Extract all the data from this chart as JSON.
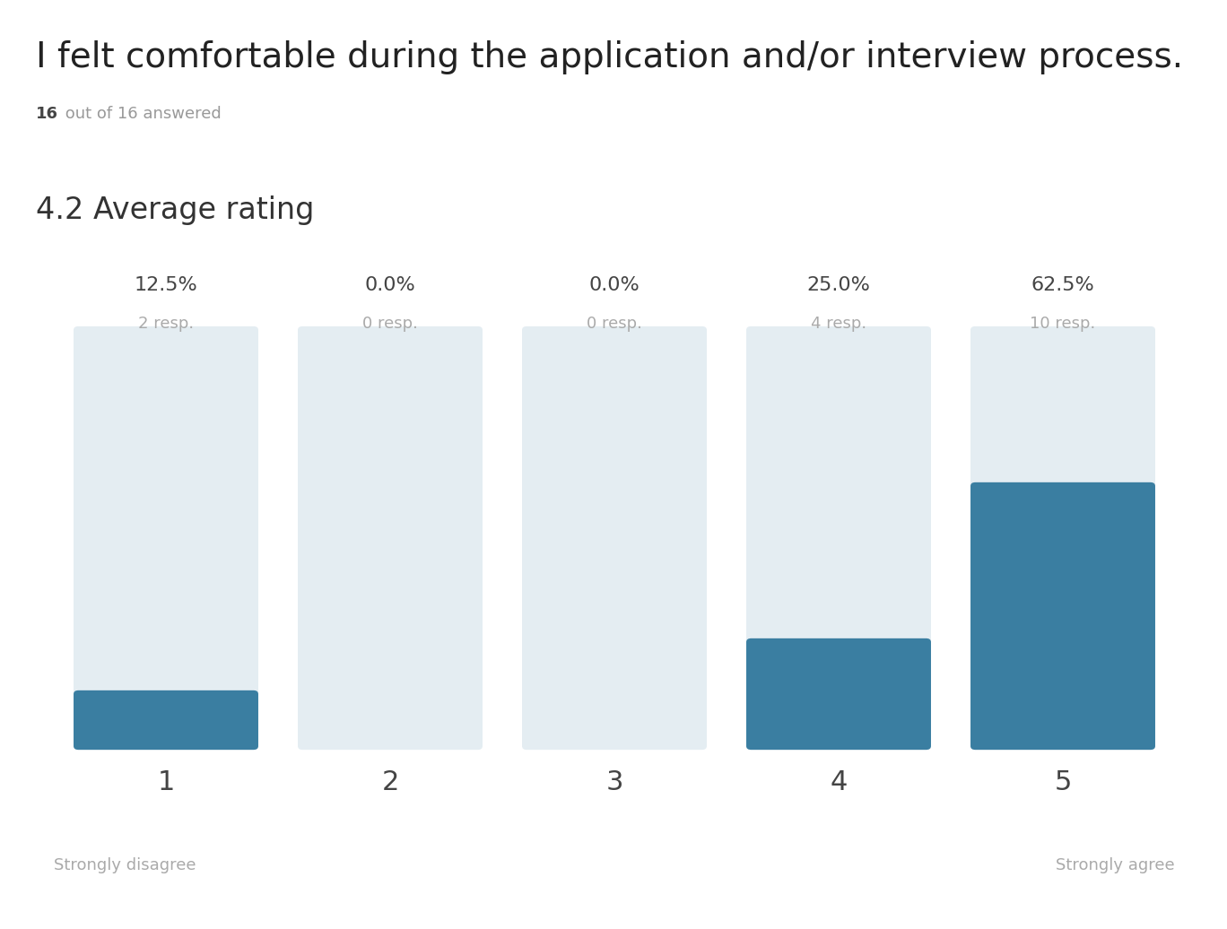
{
  "title": "I felt comfortable during the application and/or interview process.",
  "subtitle_bold": "16",
  "subtitle_rest": " out of 16 answered",
  "avg_rating": "4.2 Average rating",
  "categories": [
    1,
    2,
    3,
    4,
    5
  ],
  "percentages": [
    12.5,
    0.0,
    0.0,
    25.0,
    62.5
  ],
  "responses": [
    2,
    0,
    0,
    4,
    10
  ],
  "total": 16,
  "bar_bg_color": "#e4edf2",
  "bar_fill_color": "#3a7ea1",
  "background_color": "#ffffff",
  "title_color": "#222222",
  "subtitle_number_color": "#444444",
  "subtitle_text_color": "#999999",
  "avg_rating_color": "#333333",
  "pct_label_color": "#444444",
  "resp_label_color": "#aaaaaa",
  "xlabel_color": "#444444",
  "footer_label_color": "#aaaaaa",
  "strongly_disagree": "Strongly disagree",
  "strongly_agree": "Strongly agree",
  "title_fontsize": 28,
  "subtitle_fontsize": 13,
  "avg_rating_fontsize": 24,
  "pct_fontsize": 16,
  "resp_fontsize": 13,
  "xlabel_fontsize": 22,
  "footer_fontsize": 13
}
